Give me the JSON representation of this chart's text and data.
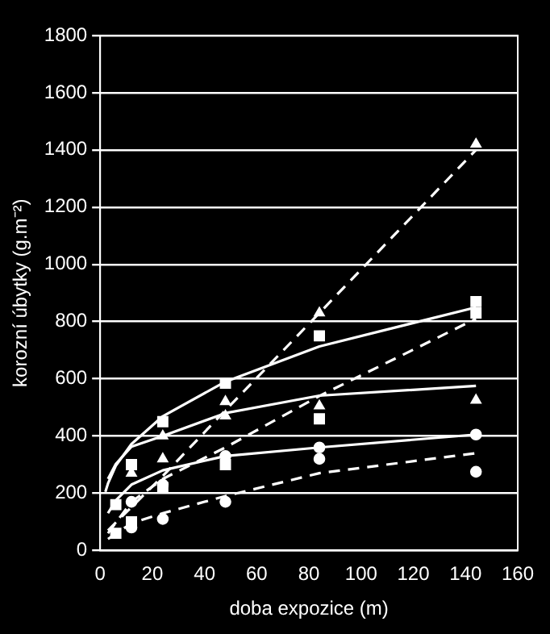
{
  "chart_data": {
    "type": "scatter",
    "xlabel": "doba expozice (m)",
    "ylabel": "korozní úbytky (g.m⁻²)",
    "xlim": [
      0,
      160
    ],
    "xticks": [
      0,
      20,
      40,
      60,
      80,
      100,
      120,
      140,
      160
    ],
    "ylim": [
      0,
      1800
    ],
    "yticks": [
      0,
      200,
      400,
      600,
      800,
      1000,
      1200,
      1400,
      1600,
      1800
    ],
    "grid": "y",
    "legend": false,
    "x": [
      6,
      12,
      24,
      48,
      84,
      144
    ],
    "series": [
      {
        "color": "#ffffff",
        "marker": "square",
        "values": [
          160,
          300,
          450,
          585,
          750,
          870
        ]
      },
      {
        "color": "#ffffff",
        "marker": "triangle",
        "values": [
          null,
          270,
          320,
          520,
          830,
          1420
        ]
      },
      {
        "color": "#ffffff",
        "marker": "triangle",
        "values": [
          null,
          null,
          400,
          470,
          505,
          525
        ]
      },
      {
        "color": "#ffffff",
        "marker": "square",
        "values": [
          60,
          100,
          220,
          300,
          460,
          830
        ]
      },
      {
        "color": "#ffffff",
        "marker": "circle",
        "values": [
          null,
          170,
          230,
          330,
          360,
          405
        ]
      },
      {
        "color": "#ffffff",
        "marker": "circle",
        "values": [
          null,
          80,
          110,
          170,
          320,
          275
        ]
      },
      {
        "type": "line",
        "color": "#ffffff",
        "marker": "none",
        "line_style": "solid",
        "x": [
          2,
          3,
          6,
          12,
          24,
          48,
          84,
          144
        ],
        "values": [
          205,
          234,
          296,
          372,
          469,
          590,
          713,
          850
        ]
      },
      {
        "type": "line",
        "color": "#ffffff",
        "marker": "none",
        "line_style": "dashed",
        "x": [
          3,
          24,
          48,
          84,
          144
        ],
        "values": [
          70,
          260,
          490,
          830,
          1400
        ]
      },
      {
        "type": "line",
        "color": "#ffffff",
        "marker": "none",
        "line_style": "solid",
        "x": [
          3,
          6,
          12,
          24,
          48,
          84,
          144
        ],
        "values": [
          250,
          302,
          363,
          400,
          480,
          541,
          575
        ]
      },
      {
        "type": "line",
        "color": "#ffffff",
        "marker": "none",
        "line_style": "dashed",
        "x": [
          3,
          12,
          24,
          48,
          84,
          144
        ],
        "values": [
          60,
          170,
          250,
          360,
          540,
          810
        ]
      },
      {
        "type": "line",
        "color": "#ffffff",
        "marker": "none",
        "line_style": "solid",
        "x": [
          3,
          6,
          12,
          24,
          48,
          84,
          144
        ],
        "values": [
          130,
          175,
          230,
          280,
          330,
          360,
          405
        ]
      },
      {
        "type": "line",
        "color": "#ffffff",
        "marker": "none",
        "line_style": "dashed",
        "x": [
          3,
          12,
          24,
          48,
          84,
          144
        ],
        "values": [
          40,
          95,
          130,
          190,
          270,
          340
        ]
      }
    ]
  }
}
